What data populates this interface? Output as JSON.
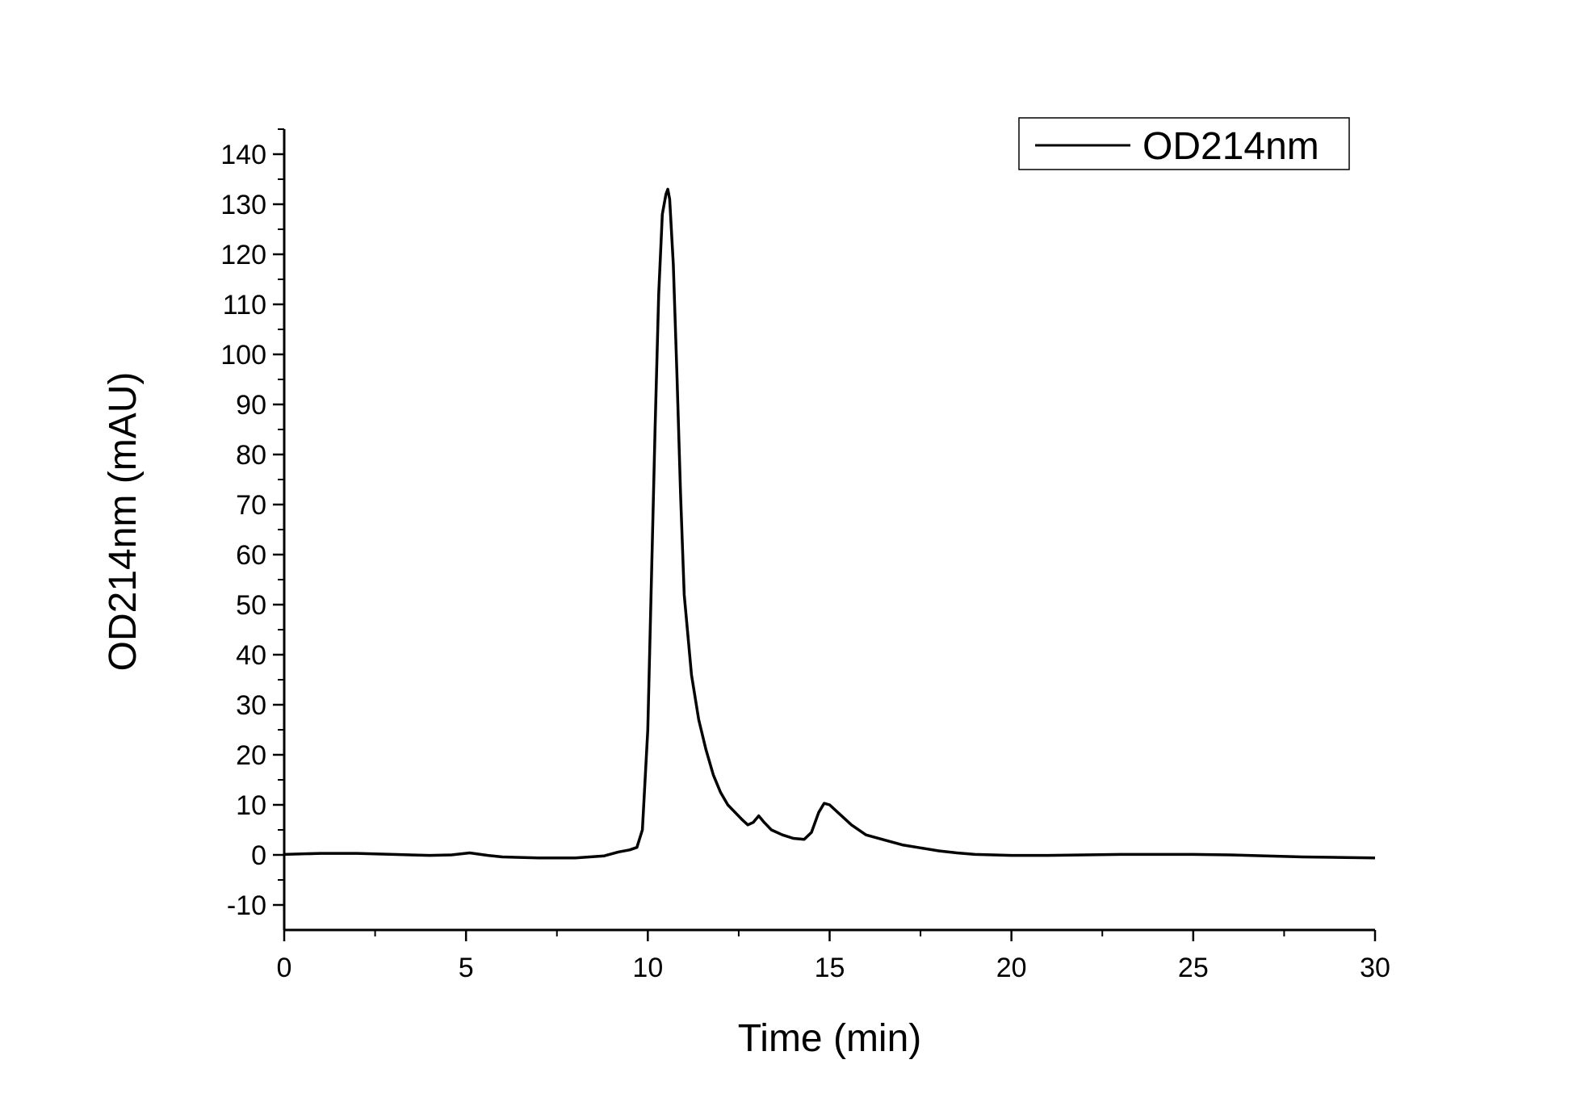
{
  "chart_data": {
    "type": "line",
    "xlabel": "Time (min)",
    "ylabel": "OD214nm (mAU)",
    "xlim": [
      0,
      30
    ],
    "ylim": [
      -15,
      145
    ],
    "xticks": [
      0,
      5,
      10,
      15,
      20,
      25,
      30
    ],
    "yticks": [
      -10,
      0,
      10,
      20,
      30,
      40,
      50,
      60,
      70,
      80,
      90,
      100,
      110,
      120,
      130,
      140
    ],
    "grid": false,
    "legend_position": "top-right",
    "series": [
      {
        "name": "OD214nm",
        "color": "#000000",
        "x": [
          0,
          1,
          2,
          3,
          4,
          4.6,
          5.1,
          5.6,
          6,
          7,
          8,
          8.8,
          9.2,
          9.5,
          9.7,
          9.85,
          10.0,
          10.1,
          10.2,
          10.3,
          10.4,
          10.5,
          10.55,
          10.6,
          10.7,
          10.8,
          10.9,
          11.0,
          11.2,
          11.4,
          11.6,
          11.8,
          12.0,
          12.2,
          12.4,
          12.6,
          12.75,
          12.9,
          13.05,
          13.2,
          13.4,
          13.7,
          14.0,
          14.3,
          14.5,
          14.7,
          14.85,
          15.0,
          15.3,
          15.6,
          16.0,
          16.5,
          17.0,
          17.5,
          18.0,
          18.5,
          19.0,
          19.5,
          20.0,
          21.0,
          22.0,
          23.0,
          24.0,
          25.0,
          26.0,
          27.0,
          28.0,
          29.0,
          30.0
        ],
        "y": [
          0.1,
          0.3,
          0.3,
          0.1,
          -0.1,
          0.0,
          0.4,
          -0.1,
          -0.4,
          -0.6,
          -0.6,
          -0.2,
          0.6,
          1.0,
          1.5,
          5,
          25,
          55,
          85,
          112,
          128,
          132,
          133,
          131,
          118,
          96,
          72,
          52,
          36,
          27,
          21,
          16,
          12.5,
          10,
          8.5,
          7,
          6,
          6.5,
          7.8,
          6.5,
          5,
          4,
          3.3,
          3.1,
          4.5,
          8.5,
          10.3,
          10,
          8,
          6,
          4,
          3,
          2,
          1.4,
          0.8,
          0.4,
          0.1,
          0.0,
          -0.1,
          -0.1,
          0.0,
          0.1,
          0.1,
          0.1,
          0.0,
          -0.2,
          -0.4,
          -0.5,
          -0.6
        ]
      }
    ]
  }
}
